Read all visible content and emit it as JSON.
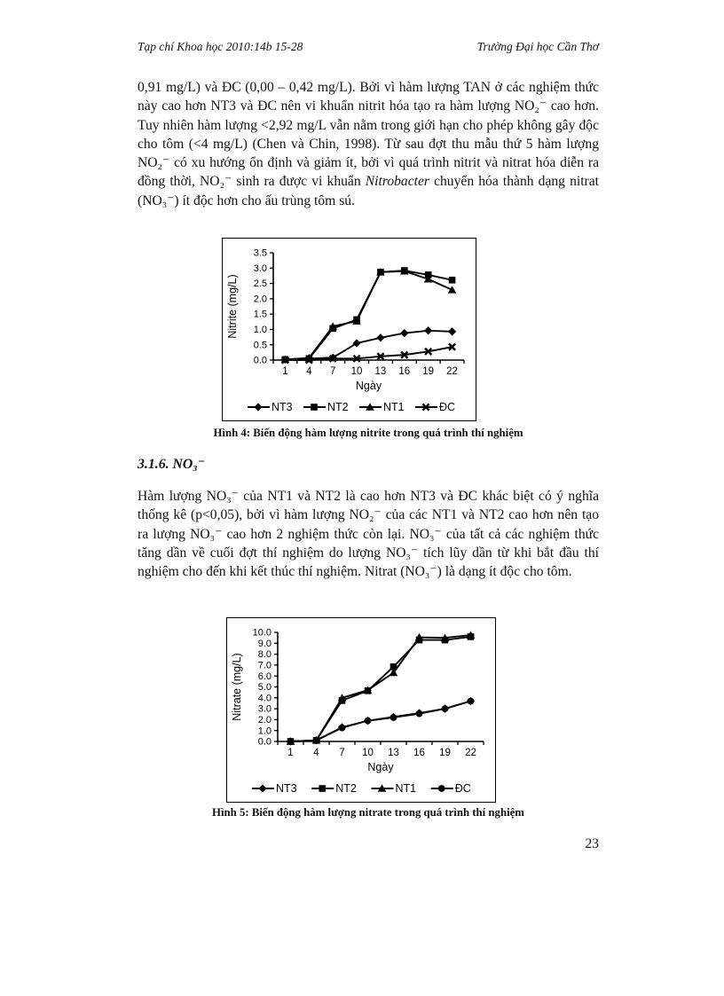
{
  "header": {
    "left": "Tạp chí Khoa học 2010:14b 15-28",
    "right": "Trường Đại học Cần Thơ"
  },
  "page_number": "23",
  "body": {
    "paragraph1": {
      "part1": "0,91 mg/L) và ĐC (0,00 – 0,42 mg/L). Bởi vì hàm lượng TAN ở các nghiệm thức này cao hơn NT3 và ĐC nên vi khuẩn nitrit hóa tạo ra hàm lượng NO₂⁻ cao hơn. Tuy nhiên hàm lượng <2,92 mg/L vẫn nằm trong giới hạn cho phép không gây độc cho tôm (<4 mg/L) (Chen và Chin, 1998). Từ sau đợt thu mẫu thứ 5 hàm lượng NO₂⁻ có xu hướng ổn định và giảm ít, bởi vì quá trình nitrit và nitrat hóa diễn ra đồng thời, NO₂⁻ sinh ra được vi khuẩn ",
      "italic": "Nitrobacter",
      "part2": " chuyển hóa thành dạng nitrat (NO₃⁻) ít độc hơn cho ấu trùng tôm sú."
    },
    "figure4_caption": "Hình 4: Biến động hàm lượng nitrite trong quá trình thí nghiệm",
    "section_heading": "3.1.6. NO₃⁻",
    "paragraph2": "Hàm lượng NO₃⁻ của NT1 và NT2 là  cao hơn NT3 và ĐC khác biệt có ý nghĩa thống kê (p<0,05), bởi vì hàm lượng NO₂⁻ của các NT1 và NT2 cao hơn nên tạo ra lượng NO₃⁻ cao hơn 2 nghiệm thức còn lại. NO₃⁻ của tất cả các nghiệm thức tăng dần về cuối đợt thí nghiệm do lượng NO₃⁻ tích lũy dần từ khi bắt đầu thí nghiệm cho đến khi kết thúc thí nghiệm. Nitrat (NO₃⁻) là dạng ít độc cho tôm.",
    "figure5_caption": "Hình 5: Biến động hàm lượng nitrate trong quá trình thí nghiệm"
  },
  "chart_data": [
    {
      "id": "nitrite-line-chart",
      "type": "line",
      "title": "",
      "xlabel": "Ngày",
      "ylabel": "Nitrite (mg/L)",
      "categories": [
        1,
        4,
        7,
        10,
        13,
        16,
        19,
        22
      ],
      "ylim": [
        0.0,
        3.5
      ],
      "ytick_step": 0.5,
      "y_decimals": 1,
      "grid": false,
      "legend_position": "bottom",
      "line_color": "#000000",
      "series": [
        {
          "name": "NT3",
          "marker": "diamond",
          "values": [
            0.02,
            0.05,
            0.08,
            0.55,
            0.73,
            0.88,
            0.96,
            0.93
          ]
        },
        {
          "name": "NT2",
          "marker": "square",
          "values": [
            0.02,
            0.05,
            1.03,
            1.32,
            2.87,
            2.92,
            2.78,
            2.61
          ]
        },
        {
          "name": "NT1",
          "marker": "triangle",
          "values": [
            0.02,
            0.07,
            1.1,
            1.27,
            2.87,
            2.9,
            2.64,
            2.29
          ]
        },
        {
          "name": "ĐC",
          "marker": "x",
          "values": [
            0.0,
            0.0,
            0.05,
            0.05,
            0.12,
            0.17,
            0.28,
            0.43
          ]
        }
      ]
    },
    {
      "id": "nitrate-line-chart",
      "type": "line",
      "title": "",
      "xlabel": "Ngày",
      "ylabel": "Nitrate (mg/L)",
      "categories": [
        1,
        4,
        7,
        10,
        13,
        16,
        19,
        22
      ],
      "ylim": [
        0.0,
        10.0
      ],
      "ytick_step": 1.0,
      "y_decimals": 1,
      "grid": false,
      "legend_position": "bottom",
      "line_color": "#000000",
      "series": [
        {
          "name": "NT3",
          "marker": "diamond",
          "values": [
            0.0,
            0.1,
            1.3,
            1.9,
            2.25,
            2.6,
            3.0,
            3.7
          ]
        },
        {
          "name": "NT2",
          "marker": "square",
          "values": [
            0.0,
            0.1,
            3.75,
            4.65,
            6.85,
            9.3,
            9.3,
            9.6
          ]
        },
        {
          "name": "NT1",
          "marker": "triangle",
          "values": [
            0.0,
            0.1,
            4.0,
            4.7,
            6.3,
            9.55,
            9.5,
            9.75
          ]
        },
        {
          "name": "ĐC",
          "marker": "circle",
          "values": [
            0.0,
            0.1,
            1.25,
            1.9,
            2.2,
            2.55,
            3.0,
            3.7
          ]
        }
      ]
    }
  ]
}
